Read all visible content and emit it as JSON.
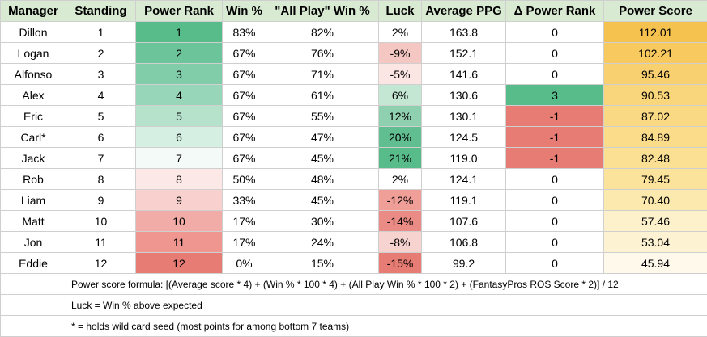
{
  "headers": [
    "Manager",
    "Standing",
    "Power Rank",
    "Win %",
    "\"All Play\" Win %",
    "Luck",
    "Average PPG",
    "Δ Power Rank",
    "Power Score"
  ],
  "rows": [
    {
      "manager": "Dillon",
      "standing": "1",
      "power_rank": "1",
      "win": "83%",
      "allplay": "82%",
      "luck": "2%",
      "ppg": "163.8",
      "delta": "0",
      "score": "112.01"
    },
    {
      "manager": "Logan",
      "standing": "2",
      "power_rank": "2",
      "win": "67%",
      "allplay": "76%",
      "luck": "-9%",
      "ppg": "152.1",
      "delta": "0",
      "score": "102.21"
    },
    {
      "manager": "Alfonso",
      "standing": "3",
      "power_rank": "3",
      "win": "67%",
      "allplay": "71%",
      "luck": "-5%",
      "ppg": "141.6",
      "delta": "0",
      "score": "95.46"
    },
    {
      "manager": "Alex",
      "standing": "4",
      "power_rank": "4",
      "win": "67%",
      "allplay": "61%",
      "luck": "6%",
      "ppg": "130.6",
      "delta": "3",
      "score": "90.53"
    },
    {
      "manager": "Eric",
      "standing": "5",
      "power_rank": "5",
      "win": "67%",
      "allplay": "55%",
      "luck": "12%",
      "ppg": "130.1",
      "delta": "-1",
      "score": "87.02"
    },
    {
      "manager": "Carl*",
      "standing": "6",
      "power_rank": "6",
      "win": "67%",
      "allplay": "47%",
      "luck": "20%",
      "ppg": "124.5",
      "delta": "-1",
      "score": "84.89"
    },
    {
      "manager": "Jack",
      "standing": "7",
      "power_rank": "7",
      "win": "67%",
      "allplay": "45%",
      "luck": "21%",
      "ppg": "119.0",
      "delta": "-1",
      "score": "82.48"
    },
    {
      "manager": "Rob",
      "standing": "8",
      "power_rank": "8",
      "win": "50%",
      "allplay": "48%",
      "luck": "2%",
      "ppg": "124.1",
      "delta": "0",
      "score": "79.45"
    },
    {
      "manager": "Liam",
      "standing": "9",
      "power_rank": "9",
      "win": "33%",
      "allplay": "45%",
      "luck": "-12%",
      "ppg": "119.1",
      "delta": "0",
      "score": "70.40"
    },
    {
      "manager": "Matt",
      "standing": "10",
      "power_rank": "10",
      "win": "17%",
      "allplay": "30%",
      "luck": "-14%",
      "ppg": "107.6",
      "delta": "0",
      "score": "57.46"
    },
    {
      "manager": "Jon",
      "standing": "11",
      "power_rank": "11",
      "win": "17%",
      "allplay": "24%",
      "luck": "-8%",
      "ppg": "106.8",
      "delta": "0",
      "score": "53.04"
    },
    {
      "manager": "Eddie",
      "standing": "12",
      "power_rank": "12",
      "win": "0%",
      "allplay": "15%",
      "luck": "-15%",
      "ppg": "99.2",
      "delta": "0",
      "score": "45.94"
    }
  ],
  "colors": {
    "power_rank": [
      "#57bb8a",
      "#6cc49a",
      "#82cda9",
      "#97d6b8",
      "#b6e2cc",
      "#d5efe2",
      "#f4faf7",
      "#fce8e7",
      "#f8d1cf",
      "#f2aca8",
      "#ee968f",
      "#e67c73"
    ],
    "luck": [
      "#ffffff",
      "#f4c7c3",
      "#fbe6e4",
      "#c4e7d4",
      "#8fd0b0",
      "#61be91",
      "#57bb8a",
      "#ffffff",
      "#ef9e98",
      "#ea8c85",
      "#f7d3d0",
      "#e67c73"
    ],
    "delta": [
      "#ffffff",
      "#ffffff",
      "#ffffff",
      "#57bb8a",
      "#e67c73",
      "#e67c73",
      "#e67c73",
      "#ffffff",
      "#ffffff",
      "#ffffff",
      "#ffffff",
      "#ffffff"
    ],
    "score": [
      "#f6c24f",
      "#f7c95e",
      "#f9d06f",
      "#f9d57b",
      "#fad985",
      "#fadc8b",
      "#fbe094",
      "#fbe39b",
      "#fce9ad",
      "#fdf1cb",
      "#fdf3d2",
      "#fef9ea"
    ]
  },
  "notes": [
    "Power score formula: [(Average score * 4) + (Win % * 100 * 4) + (All Play Win % * 100 * 2) + (FantasyPros ROS Score * 2)] / 12",
    "Luck = Win % above expected",
    "* = holds wild card seed (most points for among bottom 7 teams)"
  ]
}
